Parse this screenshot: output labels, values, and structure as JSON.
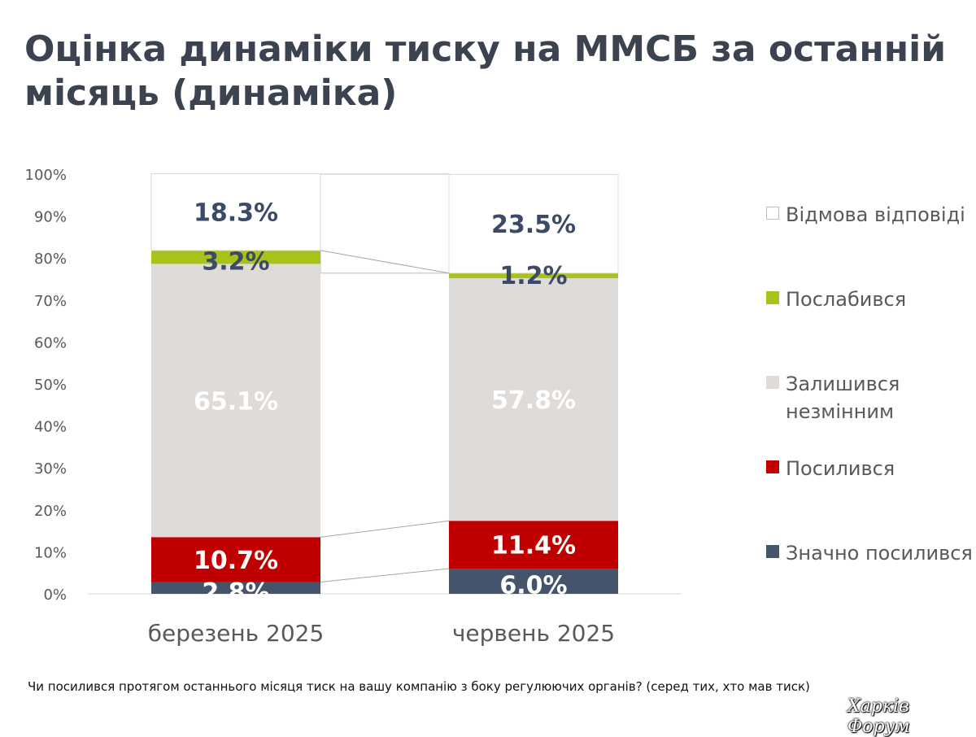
{
  "title": "Оцінка динаміки тиску на ММСБ за останній місяць (динаміка)",
  "footnote": "Чи посилився протягом останнього місяця тиск на вашу компанію з боку регулюючих органів? (серед тих, хто мав тиск)",
  "watermark": "Харків Форум",
  "colors": {
    "refused": "#ffffff",
    "weakened": "#a8c21a",
    "unchanged": "#dedbd9",
    "increased": "#c00000",
    "significantly_increased": "#44546a"
  },
  "chart_data": {
    "type": "bar",
    "stacked": true,
    "categories": [
      "березень 2025",
      "червень 2025"
    ],
    "ylim": [
      0,
      100
    ],
    "yticks": [
      "0%",
      "10%",
      "20%",
      "30%",
      "40%",
      "50%",
      "60%",
      "70%",
      "80%",
      "90%",
      "100%"
    ],
    "series": [
      {
        "key": "significantly_increased",
        "name": "Значно посилився",
        "values": [
          2.8,
          6.0
        ],
        "labels": [
          "2.8%",
          "6.0%"
        ]
      },
      {
        "key": "increased",
        "name": "Посилився",
        "values": [
          10.7,
          11.4
        ],
        "labels": [
          "10.7%",
          "11.4%"
        ]
      },
      {
        "key": "unchanged",
        "name": "Залишився незмінним",
        "values": [
          65.1,
          57.8
        ],
        "labels": [
          "65.1%",
          "57.8%"
        ]
      },
      {
        "key": "weakened",
        "name": "Послабився",
        "values": [
          3.2,
          1.2
        ],
        "labels": [
          "3.2%",
          "1.2%"
        ]
      },
      {
        "key": "refused",
        "name": "Відмова відповіді",
        "values": [
          18.3,
          23.5
        ],
        "labels": [
          "18.3%",
          "23.5%"
        ]
      }
    ],
    "legend": {
      "position": "right",
      "order": [
        "Відмова відповіді",
        "Послабився",
        "Залишився незмінним",
        "Посилився",
        "Значно посилився"
      ]
    },
    "grid": false
  }
}
